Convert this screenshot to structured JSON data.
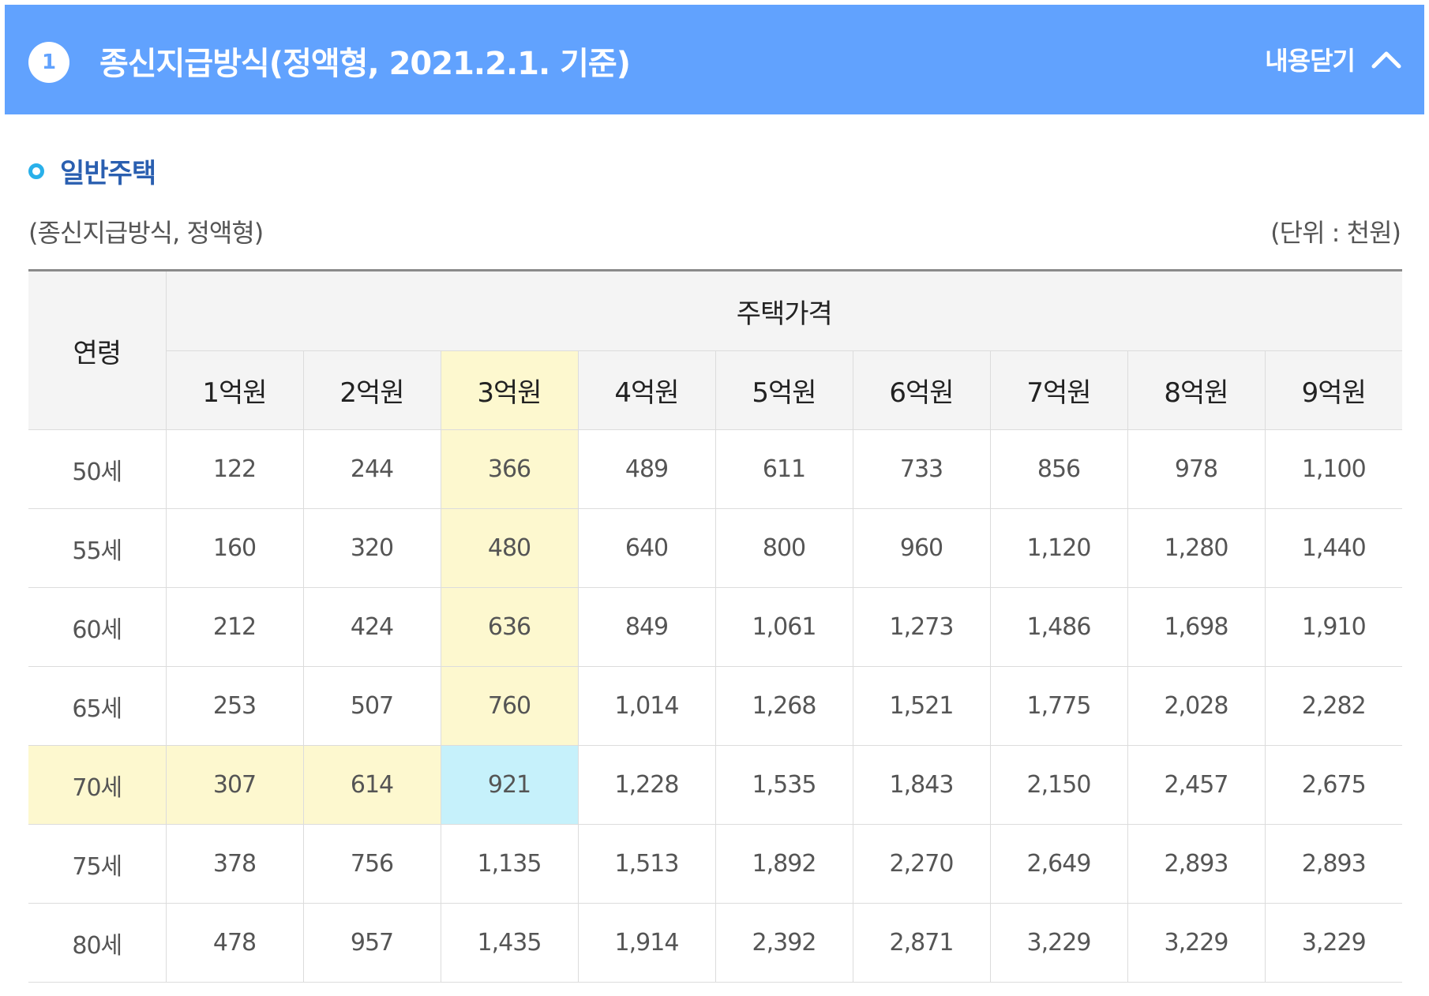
{
  "colors": {
    "header_background": "#61a2fe",
    "header_text": "#ffffff",
    "badge_background": "#ffffff",
    "badge_text": "#61a2fe",
    "section_title": "#2a5fb0",
    "bullet": "#29b0ea",
    "highlight_yellow": "#fdf8cf",
    "highlight_cyan": "#c6f1fb"
  },
  "header": {
    "step_number": "1",
    "title": "종신지급방식(정액형, 2021.2.1. 기준)",
    "collapse_label": "내용닫기",
    "collapse_icon": "chevron-up-icon"
  },
  "section": {
    "title": "일반주택",
    "caption_left": "(종신지급방식, 정액형)",
    "caption_right": "(단위 : 천원)"
  },
  "table": {
    "age_header": "연령",
    "group_header": "주택가격",
    "price_headers": [
      "1억원",
      "2억원",
      "3억원",
      "4억원",
      "5억원",
      "6억원",
      "7억원",
      "8억원",
      "9억원"
    ],
    "highlight_column_index": 2,
    "highlight_row_index": 4,
    "rows": [
      {
        "age": "50세",
        "values": [
          "122",
          "244",
          "366",
          "489",
          "611",
          "733",
          "856",
          "978",
          "1,100"
        ]
      },
      {
        "age": "55세",
        "values": [
          "160",
          "320",
          "480",
          "640",
          "800",
          "960",
          "1,120",
          "1,280",
          "1,440"
        ]
      },
      {
        "age": "60세",
        "values": [
          "212",
          "424",
          "636",
          "849",
          "1,061",
          "1,273",
          "1,486",
          "1,698",
          "1,910"
        ]
      },
      {
        "age": "65세",
        "values": [
          "253",
          "507",
          "760",
          "1,014",
          "1,268",
          "1,521",
          "1,775",
          "2,028",
          "2,282"
        ]
      },
      {
        "age": "70세",
        "values": [
          "307",
          "614",
          "921",
          "1,228",
          "1,535",
          "1,843",
          "2,150",
          "2,457",
          "2,675"
        ]
      },
      {
        "age": "75세",
        "values": [
          "378",
          "756",
          "1,135",
          "1,513",
          "1,892",
          "2,270",
          "2,649",
          "2,893",
          "2,893"
        ]
      },
      {
        "age": "80세",
        "values": [
          "478",
          "957",
          "1,435",
          "1,914",
          "2,392",
          "2,871",
          "3,229",
          "3,229",
          "3,229"
        ]
      }
    ]
  }
}
